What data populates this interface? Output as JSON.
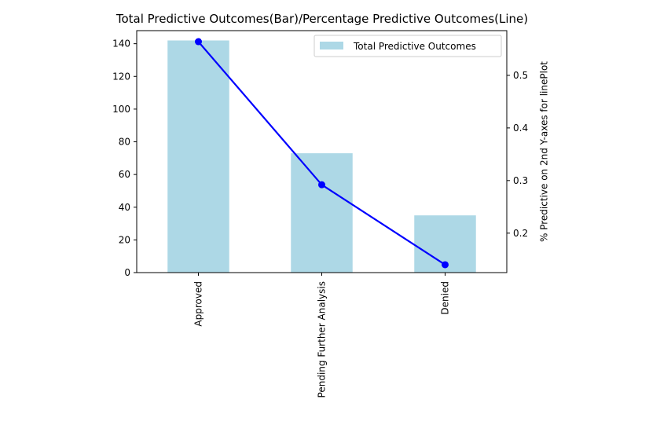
{
  "chart_data": {
    "type": "bar",
    "title": "Total Predictive Outcomes(Bar)/Percentage Predictive Outcomes(Line)",
    "categories": [
      "Approved",
      "Pending Further Analysis",
      "Denied"
    ],
    "xlabel": "",
    "ylabel": "",
    "y2label": "% Predictive on 2nd Y-axes for linePlot",
    "ylim": [
      0,
      148
    ],
    "y2lim": [
      0.125,
      0.585
    ],
    "yticks": [
      "0",
      "20",
      "40",
      "60",
      "80",
      "100",
      "120",
      "140"
    ],
    "y2ticks": [
      "0.2",
      "0.3",
      "0.4",
      "0.5"
    ],
    "series": [
      {
        "name": "Total Predictive Outcomes",
        "kind": "bar",
        "axis": "left",
        "values": [
          142,
          73,
          35
        ],
        "color": "#add8e6"
      },
      {
        "kind": "line",
        "axis": "right",
        "values": [
          0.564,
          0.292,
          0.14
        ],
        "color": "#0000ff",
        "marker": "circle"
      }
    ],
    "legend": {
      "position": "top-right",
      "entries": [
        "Total Predictive Outcomes"
      ]
    },
    "grid": false
  }
}
